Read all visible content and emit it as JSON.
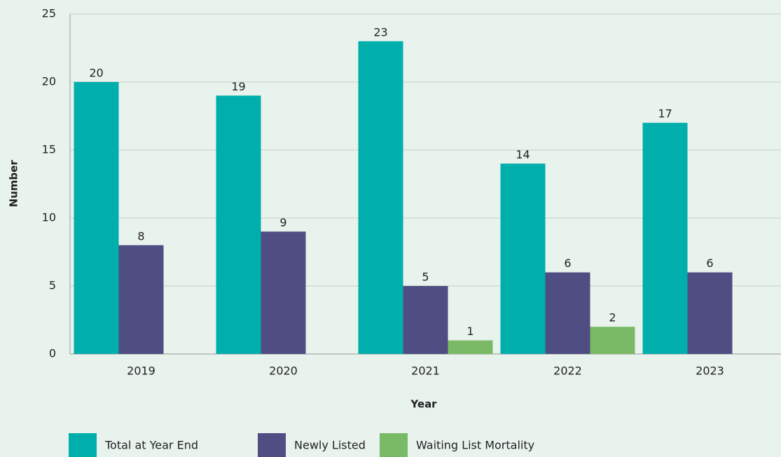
{
  "chart_data": {
    "type": "bar",
    "x_label": "Year",
    "y_label": "Number",
    "categories": [
      "2019",
      "2020",
      "2021",
      "2022",
      "2023"
    ],
    "series": [
      {
        "name": "Total at Year End",
        "color": "#00aeac",
        "values": [
          20,
          19,
          23,
          14,
          17
        ]
      },
      {
        "name": "Newly Listed",
        "color": "#4f4d82",
        "values": [
          8,
          9,
          5,
          6,
          6
        ]
      },
      {
        "name": "Waiting List Mortality",
        "color": "#7aba66",
        "values": [
          null,
          null,
          1,
          2,
          null
        ]
      }
    ],
    "ylim": [
      0,
      25
    ],
    "yticks": [
      0,
      5,
      10,
      15,
      20,
      25
    ],
    "grid": true
  }
}
